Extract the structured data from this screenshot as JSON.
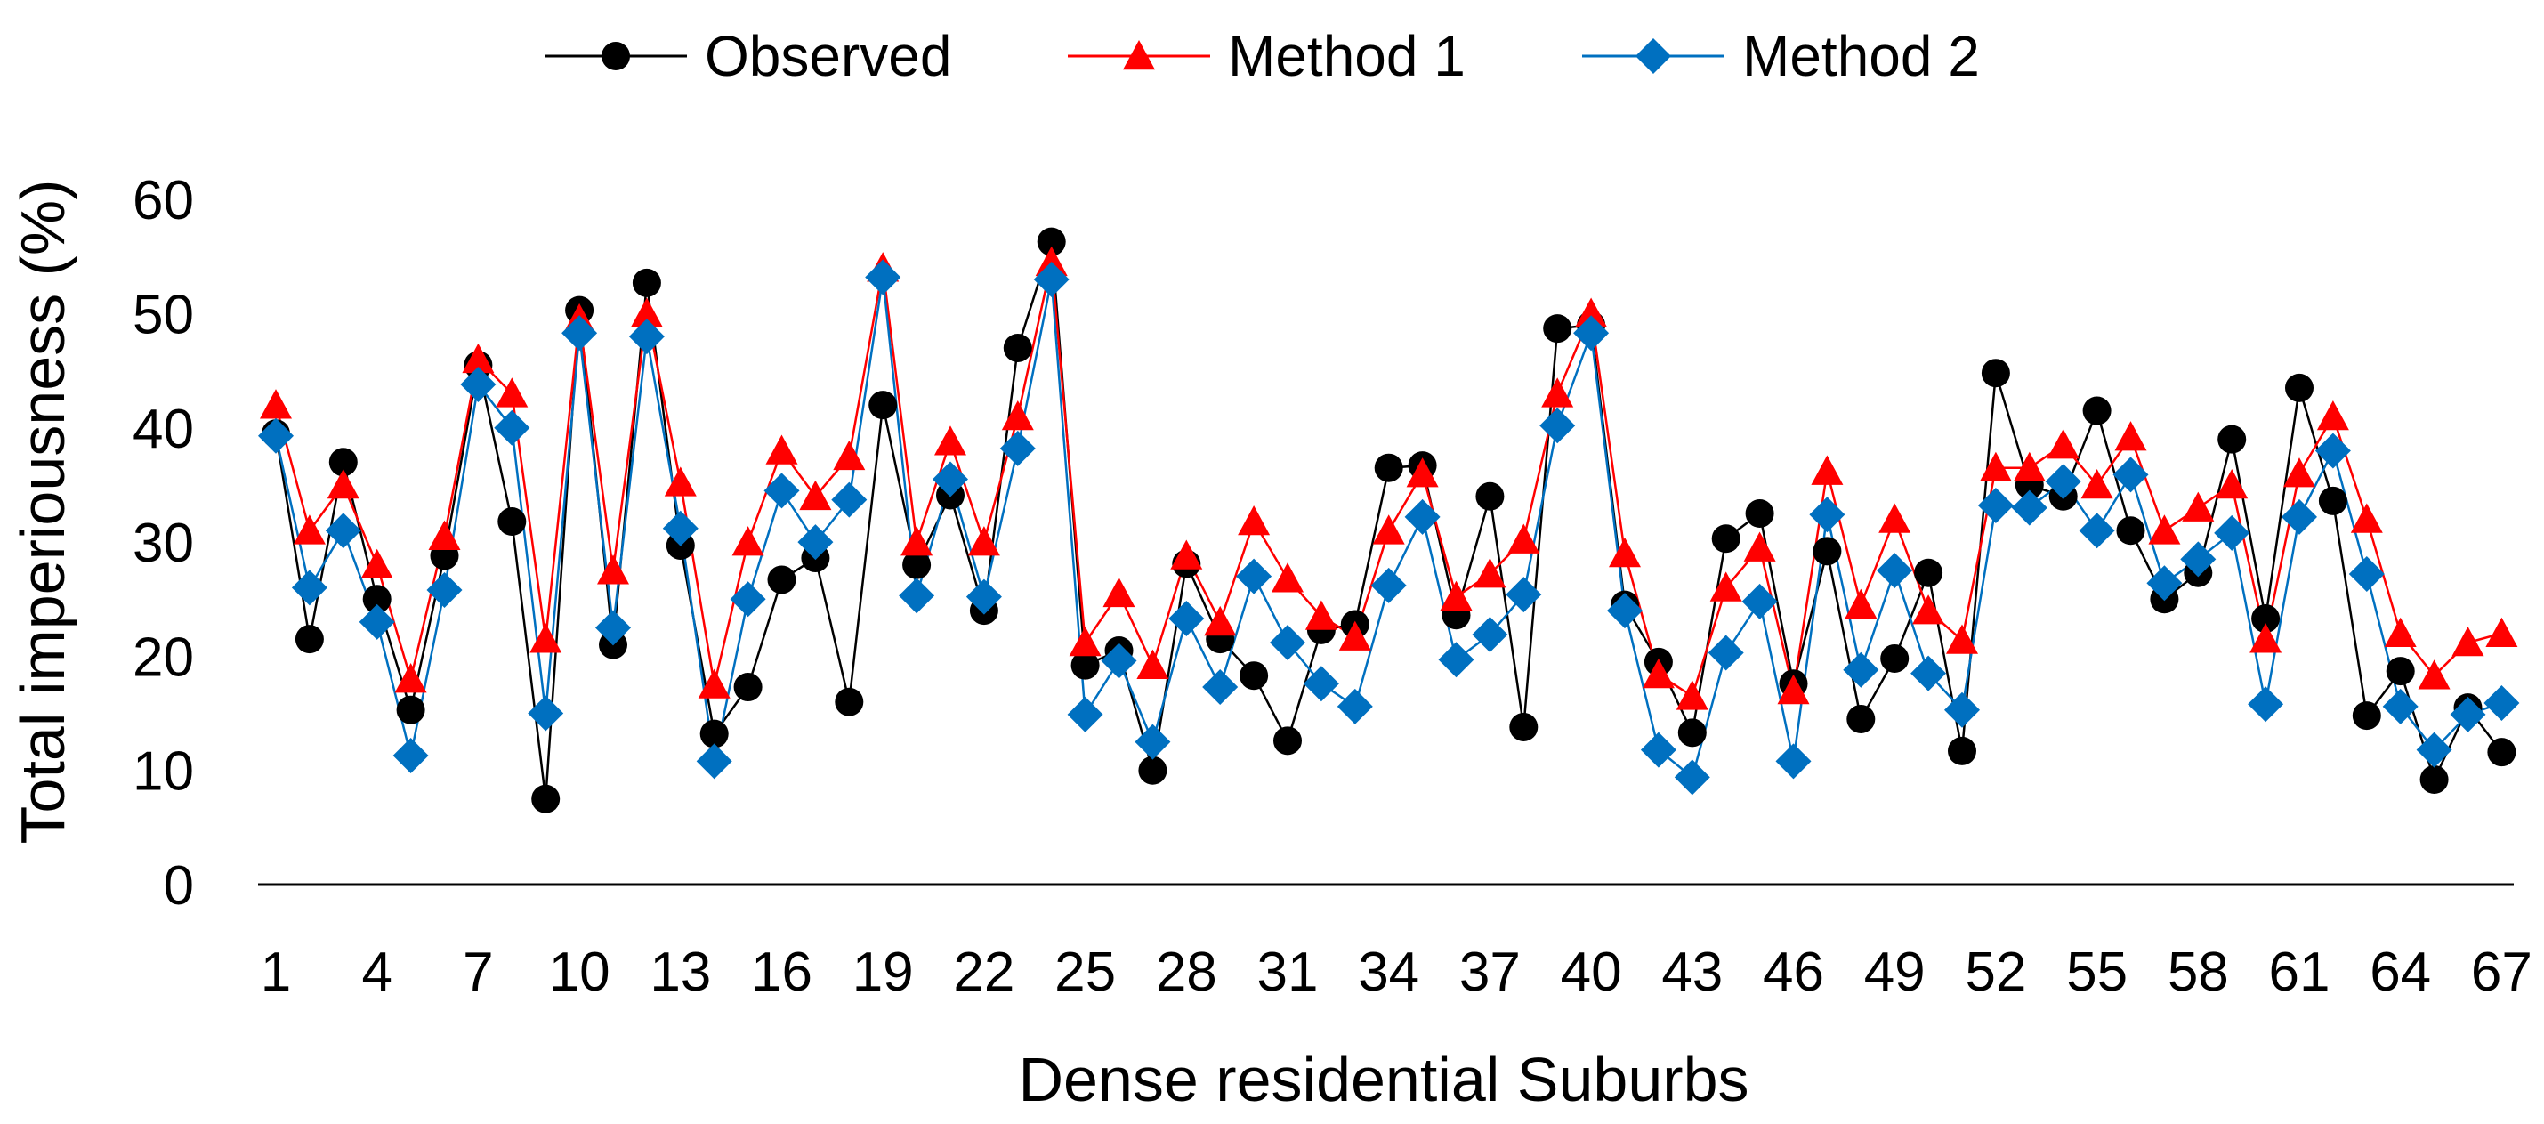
{
  "chart_data": {
    "type": "line",
    "title": "",
    "xlabel": "Dense residential Suburbs",
    "ylabel": "Total imperiousness (%)",
    "ylim": [
      0,
      60
    ],
    "yticks": [
      0,
      10,
      20,
      30,
      40,
      50,
      60
    ],
    "ytick_labels": [
      "0",
      "10",
      "20",
      "30",
      "40",
      "50",
      "60"
    ],
    "xticks": [
      1,
      4,
      7,
      10,
      13,
      16,
      19,
      22,
      25,
      28,
      31,
      34,
      37,
      40,
      43,
      46,
      49,
      52,
      55,
      58,
      61,
      64,
      67
    ],
    "xtick_labels": [
      "1",
      "4",
      "7",
      "10",
      "13",
      "16",
      "19",
      "22",
      "25",
      "28",
      "31",
      "34",
      "37",
      "40",
      "43",
      "46",
      "49",
      "52",
      "55",
      "58",
      "61",
      "64",
      "67"
    ],
    "grid": false,
    "legend_position": "top-center",
    "series": [
      {
        "name": "Observed",
        "color": "#000000",
        "marker": "circle",
        "values": [
          39.5,
          21.5,
          37.0,
          25.0,
          15.3,
          28.8,
          45.5,
          31.8,
          7.5,
          50.3,
          21.0,
          52.7,
          29.7,
          13.2,
          17.3,
          26.7,
          28.6,
          16.0,
          42.0,
          28.0,
          34.1,
          24.0,
          47.0,
          56.3,
          19.2,
          20.5,
          10.0,
          28.1,
          21.5,
          18.3,
          12.6,
          22.3,
          22.8,
          36.5,
          36.7,
          23.6,
          34.0,
          13.8,
          48.7,
          49.0,
          24.5,
          19.5,
          13.3,
          30.3,
          32.5,
          17.6,
          29.2,
          14.5,
          19.8,
          27.3,
          11.7,
          44.8,
          35.0,
          34.0,
          41.5,
          31.0,
          25.0,
          27.3,
          39.0,
          23.3,
          43.5,
          33.6,
          14.8,
          18.7,
          9.2,
          15.5,
          11.6
        ]
      },
      {
        "name": "Method 1",
        "color": "#ff0000",
        "marker": "triangle",
        "values": [
          42.0,
          31.0,
          35.0,
          28.0,
          18.0,
          30.5,
          46.0,
          43.0,
          21.5,
          49.5,
          27.5,
          50.0,
          35.2,
          17.5,
          30.0,
          38.0,
          34.0,
          37.5,
          54.0,
          30.0,
          38.8,
          30.0,
          41.0,
          54.5,
          21.2,
          25.5,
          19.2,
          28.8,
          23.0,
          31.8,
          26.8,
          23.5,
          21.7,
          31.0,
          36.0,
          25.2,
          27.2,
          30.2,
          43.0,
          50.0,
          29.0,
          18.4,
          16.5,
          26.0,
          29.5,
          17.0,
          36.2,
          24.5,
          32.0,
          24.0,
          21.4,
          36.5,
          36.5,
          38.5,
          35.0,
          39.2,
          31.0,
          33.0,
          35.0,
          21.5,
          36.0,
          41.0,
          32.0,
          22.0,
          18.3,
          21.2,
          22.0
        ]
      },
      {
        "name": "Method 2",
        "color": "#0070c0",
        "marker": "diamond",
        "values": [
          39.3,
          26.0,
          31.0,
          23.0,
          11.3,
          25.8,
          43.8,
          40.0,
          15.0,
          48.3,
          22.5,
          48.0,
          31.2,
          10.8,
          25.0,
          34.5,
          30.0,
          33.7,
          53.2,
          25.3,
          35.5,
          25.2,
          38.2,
          53.0,
          14.9,
          19.6,
          12.5,
          23.3,
          17.3,
          27.0,
          21.2,
          17.6,
          15.6,
          26.2,
          32.2,
          19.7,
          21.9,
          25.4,
          40.2,
          48.3,
          24.0,
          11.8,
          9.4,
          20.3,
          24.8,
          10.8,
          32.4,
          18.8,
          27.5,
          18.5,
          15.3,
          33.2,
          33.0,
          35.3,
          31.0,
          35.9,
          26.4,
          28.5,
          30.8,
          15.8,
          32.2,
          38.0,
          27.2,
          15.6,
          11.8,
          14.9,
          15.9
        ]
      }
    ]
  }
}
